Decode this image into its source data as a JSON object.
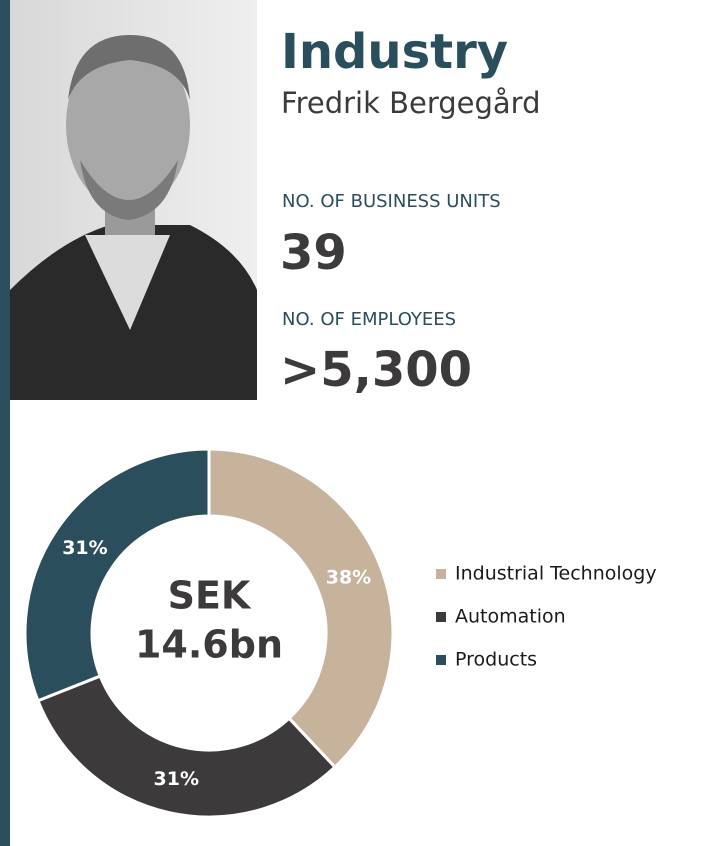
{
  "header": {
    "title": "Industry",
    "name": "Fredrik Bergegård"
  },
  "stats": [
    {
      "label": "NO. OF BUSINESS UNITS",
      "value": "39"
    },
    {
      "label": "NO. OF EMPLOYEES",
      "value": ">5,300"
    }
  ],
  "chart_data": {
    "type": "donut",
    "center_text": [
      "SEK",
      "14.6bn"
    ],
    "categories": [
      "Industrial Technology",
      "Automation",
      "Products"
    ],
    "values": [
      38,
      31,
      31
    ],
    "value_labels": [
      "38%",
      "31%",
      "31%"
    ],
    "colors": [
      "#c7b29c",
      "#3d3a3b",
      "#2b4e5c"
    ]
  }
}
